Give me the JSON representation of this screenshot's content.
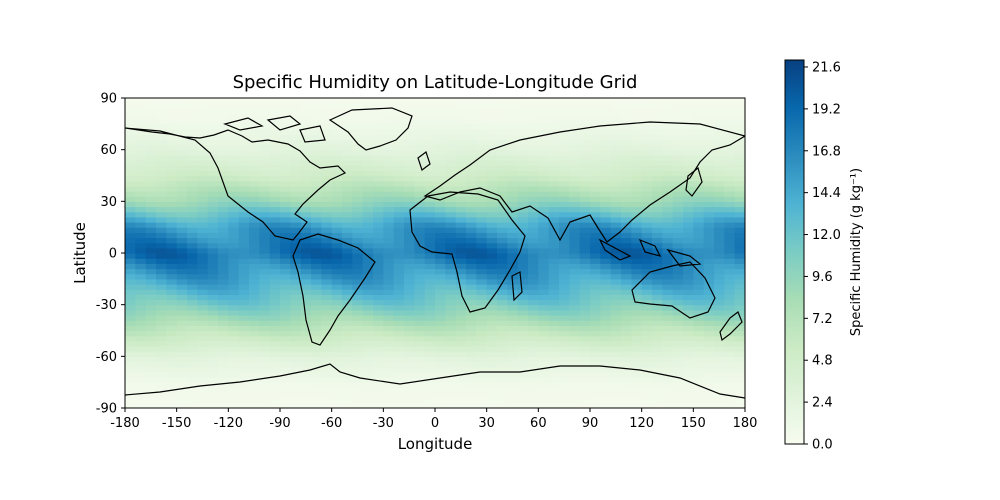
{
  "chart_data": {
    "type": "heatmap",
    "title": "Specific Humidity on Latitude-Longitude Grid",
    "xlabel": "Longitude",
    "ylabel": "Latitude",
    "xlim": [
      -180,
      180
    ],
    "ylim": [
      -90,
      90
    ],
    "xticks": [
      "-180",
      "-150",
      "-120",
      "-90",
      "-60",
      "-30",
      "0",
      "30",
      "60",
      "90",
      "120",
      "150",
      "180"
    ],
    "yticks": [
      "-90",
      "-60",
      "-30",
      "0",
      "30",
      "60",
      "90"
    ],
    "colorbar": {
      "label": "Specific Humidity (g kg⁻¹)",
      "range": [
        0.0,
        22.0
      ],
      "ticks": [
        "0.0",
        "2.4",
        "4.8",
        "7.2",
        "9.6",
        "12.0",
        "14.4",
        "16.8",
        "19.2",
        "21.6"
      ],
      "colormap": [
        "#f7fcf0",
        "#e0f3db",
        "#ccebc5",
        "#a8ddb5",
        "#7bccc4",
        "#4eb3d3",
        "#2b8cbe",
        "#0868ac",
        "#084081"
      ]
    },
    "zonal_mean_by_latitude": {
      "lat": [
        -90,
        -75,
        -60,
        -45,
        -30,
        -15,
        0,
        15,
        30,
        45,
        60,
        75,
        90
      ],
      "value": [
        0.3,
        0.8,
        2.5,
        6.5,
        11,
        15,
        18.5,
        15.5,
        9,
        5,
        2.5,
        0.9,
        0.3
      ]
    },
    "coastlines": "world continents outline"
  }
}
